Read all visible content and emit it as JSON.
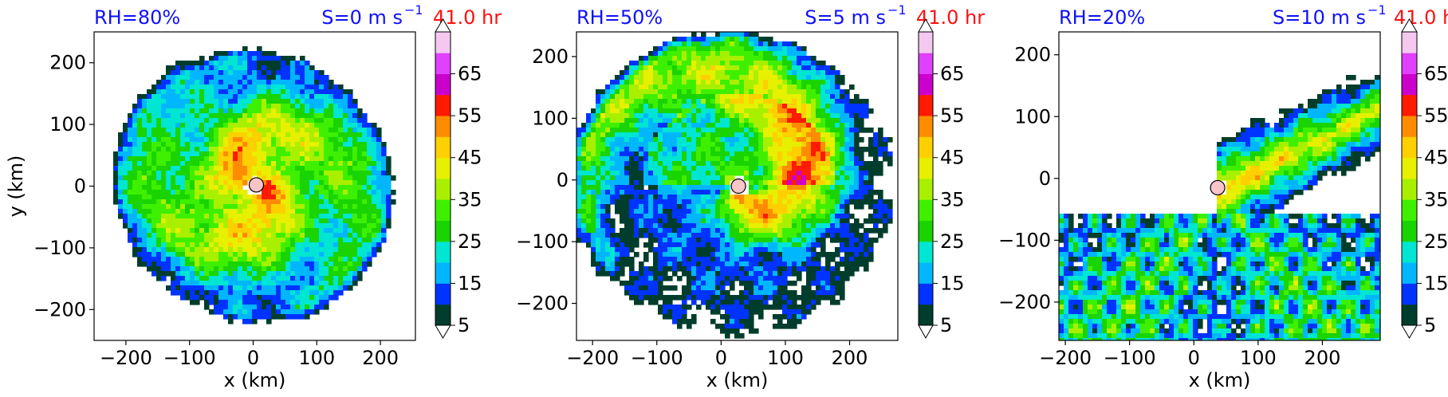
{
  "colors": {
    "rh_text": "#1010ff",
    "time_text": "#ff1010",
    "shear_text": "#1010ff",
    "colorbar": [
      "#013d2c",
      "#0033ff",
      "#00b7ff",
      "#00e6d2",
      "#19d400",
      "#3ef000",
      "#a8f000",
      "#e6f000",
      "#ffd000",
      "#ff8c00",
      "#ff1a00",
      "#cc00cc",
      "#e040ff",
      "#f5c8f0"
    ],
    "storm_center": "#f7c4c8"
  },
  "chart_data": [
    {
      "type": "heatmap",
      "title_left": "RH=80%",
      "title_mid": "41.0 hr",
      "title_right": "S=0 m s",
      "title_right_sup": "−1",
      "xlabel": "x (km)",
      "ylabel": "y (km)",
      "xlim": [
        -250,
        255
      ],
      "ylim": [
        -250,
        250
      ],
      "xticks": [
        "−200",
        "−100",
        "0",
        "100",
        "200"
      ],
      "xtick_values": [
        -200,
        -100,
        0,
        100,
        200
      ],
      "yticks": [
        "200",
        "100",
        "0",
        "−100",
        "−200"
      ],
      "ytick_values": [
        200,
        100,
        0,
        -100,
        -200
      ],
      "colorbar_ticks": [
        "5",
        "15",
        "25",
        "35",
        "45",
        "55",
        "65"
      ],
      "colorbar_levels": [
        5,
        10,
        15,
        20,
        25,
        30,
        35,
        40,
        45,
        50,
        55,
        60,
        65,
        70
      ],
      "storm_center": [
        5,
        2
      ]
    },
    {
      "type": "heatmap",
      "title_left": "RH=50%",
      "title_mid": "41.0 hr",
      "title_right": "S=5 m s",
      "title_right_sup": "−1",
      "xlabel": "x (km)",
      "ylabel": "",
      "xlim": [
        -225,
        275
      ],
      "ylim": [
        -260,
        240
      ],
      "xticks": [
        "−200",
        "−100",
        "0",
        "100",
        "200"
      ],
      "xtick_values": [
        -200,
        -100,
        0,
        100,
        200
      ],
      "yticks": [
        "200",
        "100",
        "0",
        "−100",
        "−200"
      ],
      "ytick_values": [
        200,
        100,
        0,
        -100,
        -200
      ],
      "colorbar_ticks": [
        "5",
        "15",
        "25",
        "35",
        "45",
        "55",
        "65"
      ],
      "colorbar_levels": [
        5,
        10,
        15,
        20,
        25,
        30,
        35,
        40,
        45,
        50,
        55,
        60,
        65,
        70
      ],
      "storm_center": [
        27,
        -10
      ]
    },
    {
      "type": "heatmap",
      "title_left": "RH=20%",
      "title_mid": "41.0 hr",
      "title_right": "S=10 m s",
      "title_right_sup": "−1",
      "xlabel": "x (km)",
      "ylabel": "",
      "xlim": [
        -210,
        290
      ],
      "ylim": [
        -262,
        237
      ],
      "xticks": [
        "−200",
        "−100",
        "0",
        "100",
        "200"
      ],
      "xtick_values": [
        -200,
        -100,
        0,
        100,
        200
      ],
      "yticks": [
        "200",
        "100",
        "0",
        "−100",
        "−200"
      ],
      "ytick_values": [
        200,
        100,
        0,
        -100,
        -200
      ],
      "colorbar_ticks": [
        "5",
        "15",
        "25",
        "35",
        "45",
        "55",
        "65"
      ],
      "colorbar_levels": [
        5,
        10,
        15,
        20,
        25,
        30,
        35,
        40,
        45,
        50,
        55,
        60,
        65,
        70
      ],
      "storm_center": [
        37,
        -15
      ]
    }
  ]
}
